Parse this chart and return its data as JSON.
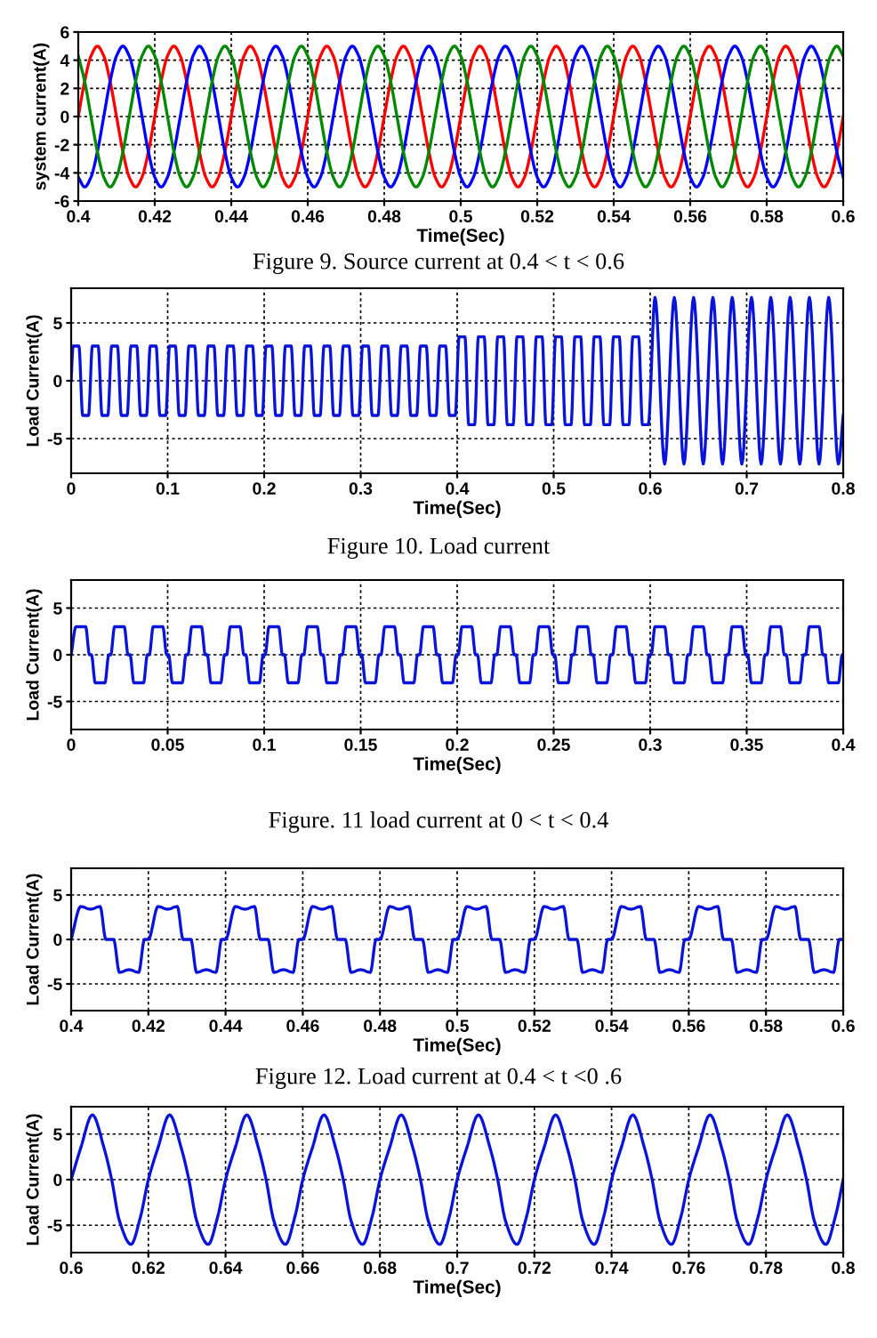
{
  "chart_data": [
    {
      "type": "line",
      "xlabel": "Time(Sec)",
      "ylabel": "system current(A)",
      "xlim": [
        0.4,
        0.6
      ],
      "ylim": [
        -6,
        6
      ],
      "xticks": [
        0.4,
        0.42,
        0.44,
        0.46,
        0.48,
        0.5,
        0.52,
        0.54,
        0.56,
        0.58,
        0.6
      ],
      "yticks": [
        -6,
        -4,
        -2,
        0,
        2,
        4,
        6
      ],
      "grid": true,
      "annotations": [
        "Figure 9. Source current at 0.4 < t < 0.6"
      ],
      "x": [
        0.4,
        0.40167,
        0.40333,
        0.405,
        0.40667,
        0.40833,
        0.41,
        0.41167,
        0.41333,
        0.415,
        0.41667,
        0.41833,
        0.42,
        0.42167,
        0.42333,
        0.425,
        0.42667,
        0.42833,
        0.43,
        0.43167,
        0.43333,
        0.435,
        0.43667,
        0.43833,
        0.44,
        0.44167,
        0.44333,
        0.445,
        0.44667,
        0.44833,
        0.45,
        0.45167,
        0.45333,
        0.455,
        0.45667,
        0.45833,
        0.46,
        0.46167,
        0.46333,
        0.465,
        0.46667,
        0.46833,
        0.47,
        0.47167,
        0.47333,
        0.475,
        0.47667,
        0.47833,
        0.48,
        0.48167,
        0.48333,
        0.485,
        0.48667,
        0.48833,
        0.49,
        0.49167,
        0.49333,
        0.495,
        0.49667,
        0.49833,
        0.5,
        0.50167,
        0.50333,
        0.505,
        0.50667,
        0.50833,
        0.51,
        0.51167,
        0.51333,
        0.515,
        0.51667,
        0.51833,
        0.52,
        0.52167,
        0.52333,
        0.525,
        0.52667,
        0.52833,
        0.53,
        0.53167,
        0.53333,
        0.535,
        0.53667,
        0.53833,
        0.54,
        0.54167,
        0.54333,
        0.545,
        0.54667,
        0.54833,
        0.55,
        0.55167,
        0.55333,
        0.555,
        0.55667,
        0.55833,
        0.56,
        0.56167,
        0.56333,
        0.565,
        0.56667,
        0.56833,
        0.57,
        0.57167,
        0.57333,
        0.575,
        0.57667,
        0.57833,
        0.58,
        0.58167,
        0.58333,
        0.585,
        0.58667,
        0.58833,
        0.59,
        0.59167,
        0.59333,
        0.595,
        0.59667,
        0.59833,
        0.6
      ],
      "series": [
        {
          "color": "#ff0000",
          "values": [
            0,
            2.5,
            4.3,
            5,
            4.3,
            2.5,
            0,
            -2.5,
            -4.3,
            -5,
            -4.3,
            -2.5,
            0,
            2.5,
            4.3,
            5,
            4.3,
            2.5,
            0,
            -2.5,
            -4.3,
            -5,
            -4.3,
            -2.5,
            0,
            2.5,
            4.3,
            5,
            4.3,
            2.5,
            0,
            -2.5,
            -4.3,
            -5,
            -4.3,
            -2.5,
            0,
            2.5,
            4.3,
            5,
            4.3,
            2.5,
            0,
            -2.5,
            -4.3,
            -5,
            -4.3,
            -2.5,
            0,
            2.5,
            4.3,
            5,
            4.3,
            2.5,
            0,
            -2.5,
            -4.3,
            -5,
            -4.3,
            -2.5,
            0,
            2.5,
            4.3,
            5,
            4.3,
            2.5,
            0,
            -2.5,
            -4.3,
            -5,
            -4.3,
            -2.5,
            0,
            2.5,
            4.3,
            5,
            4.3,
            2.5,
            0,
            -2.5,
            -4.3,
            -5,
            -4.3,
            -2.5,
            0,
            2.5,
            4.3,
            5,
            4.3,
            2.5,
            0,
            -2.5,
            -4.3,
            -5,
            -4.3,
            -2.5,
            0,
            2.5,
            4.3,
            5,
            4.3,
            2.5,
            0,
            -2.5,
            -4.3,
            -5,
            -4.3,
            -2.5,
            0,
            2.5,
            4.3,
            5,
            4.3,
            2.5,
            0,
            -2.5,
            -4.3,
            -5,
            -4.3,
            -2.5,
            0
          ]
        },
        {
          "color": "#0000ff",
          "values": [
            -4.3,
            -5,
            -4.3,
            -2.5,
            0,
            2.5,
            4.3,
            5,
            4.3,
            2.5,
            0,
            -2.5,
            -4.3,
            -5,
            -4.3,
            -2.5,
            0,
            2.5,
            4.3,
            5,
            4.3,
            2.5,
            0,
            -2.5,
            -4.3,
            -5,
            -4.3,
            -2.5,
            0,
            2.5,
            4.3,
            5,
            4.3,
            2.5,
            0,
            -2.5,
            -4.3,
            -5,
            -4.3,
            -2.5,
            0,
            2.5,
            4.3,
            5,
            4.3,
            2.5,
            0,
            -2.5,
            -4.3,
            -5,
            -4.3,
            -2.5,
            0,
            2.5,
            4.3,
            5,
            4.3,
            2.5,
            0,
            -2.5,
            -4.3,
            -5,
            -4.3,
            -2.5,
            0,
            2.5,
            4.3,
            5,
            4.3,
            2.5,
            0,
            -2.5,
            -4.3,
            -5,
            -4.3,
            -2.5,
            0,
            2.5,
            4.3,
            5,
            4.3,
            2.5,
            0,
            -2.5,
            -4.3,
            -5,
            -4.3,
            -2.5,
            0,
            2.5,
            4.3,
            5,
            4.3,
            2.5,
            0,
            -2.5,
            -4.3,
            -5,
            -4.3,
            -2.5,
            0,
            2.5,
            4.3,
            5,
            4.3,
            2.5,
            0,
            -2.5,
            -4.3,
            -5,
            -4.3,
            -2.5,
            0,
            2.5,
            4.3,
            5,
            4.3,
            2.5,
            0,
            -2.5,
            -4.3
          ]
        },
        {
          "color": "#008800",
          "values": [
            4.3,
            2.5,
            0,
            -2.5,
            -4.3,
            -5,
            -4.3,
            -2.5,
            0,
            2.5,
            4.3,
            5,
            4.3,
            2.5,
            0,
            -2.5,
            -4.3,
            -5,
            -4.3,
            -2.5,
            0,
            2.5,
            4.3,
            5,
            4.3,
            2.5,
            0,
            -2.5,
            -4.3,
            -5,
            -4.3,
            -2.5,
            0,
            2.5,
            4.3,
            5,
            4.3,
            2.5,
            0,
            -2.5,
            -4.3,
            -5,
            -4.3,
            -2.5,
            0,
            2.5,
            4.3,
            5,
            4.3,
            2.5,
            0,
            -2.5,
            -4.3,
            -5,
            -4.3,
            -2.5,
            0,
            2.5,
            4.3,
            5,
            4.3,
            2.5,
            0,
            -2.5,
            -4.3,
            -5,
            -4.3,
            -2.5,
            0,
            2.5,
            4.3,
            5,
            4.3,
            2.5,
            0,
            -2.5,
            -4.3,
            -5,
            -4.3,
            -2.5,
            0,
            2.5,
            4.3,
            5,
            4.3,
            2.5,
            0,
            -2.5,
            -4.3,
            -5,
            -4.3,
            -2.5,
            0,
            2.5,
            4.3,
            5,
            4.3,
            2.5,
            0,
            -2.5,
            -4.3,
            -5,
            -4.3,
            -2.5,
            0,
            2.5,
            4.3,
            5,
            4.3,
            2.5,
            0,
            -2.5,
            -4.3,
            -5,
            -4.3,
            -2.5,
            0,
            2.5,
            4.3,
            5,
            4.3
          ]
        }
      ]
    },
    {
      "type": "line",
      "xlabel": "Time(Sec)",
      "ylabel": "Load Current(A)",
      "xlim": [
        0,
        0.8
      ],
      "ylim": [
        -8,
        8
      ],
      "xticks": [
        0,
        0.1,
        0.2,
        0.3,
        0.4,
        0.5,
        0.6,
        0.7,
        0.8
      ],
      "yticks": [
        -5,
        0,
        5
      ],
      "grid": true,
      "annotations": [
        "Figure 10. Load current"
      ],
      "x": [
        0,
        0.002,
        0.008,
        0.012,
        0.018,
        0.022,
        0.028,
        0.032,
        0.038,
        0.042,
        0.048,
        0.052,
        0.058,
        0.062,
        0.068,
        0.072,
        0.078,
        0.082,
        0.088,
        0.092,
        0.098,
        0.102,
        0.108,
        0.112,
        0.118,
        0.122,
        0.128,
        0.132,
        0.138,
        0.142,
        0.148,
        0.152,
        0.158,
        0.162,
        0.168,
        0.172,
        0.178,
        0.182,
        0.188,
        0.192,
        0.198,
        0.202,
        0.208,
        0.212,
        0.218,
        0.222,
        0.228,
        0.232,
        0.238,
        0.242,
        0.248,
        0.252,
        0.258,
        0.262,
        0.268,
        0.272,
        0.278,
        0.282,
        0.288,
        0.292,
        0.298,
        0.302,
        0.308,
        0.312,
        0.318,
        0.322,
        0.328,
        0.332,
        0.338,
        0.342,
        0.348,
        0.352,
        0.358,
        0.362,
        0.368,
        0.372,
        0.378,
        0.382,
        0.388,
        0.392,
        0.398,
        0.402,
        0.408,
        0.412,
        0.418,
        0.422,
        0.428,
        0.432,
        0.438,
        0.442,
        0.448,
        0.452,
        0.458,
        0.462,
        0.468,
        0.472,
        0.478,
        0.482,
        0.488,
        0.492,
        0.498,
        0.502,
        0.508,
        0.512,
        0.518,
        0.522,
        0.528,
        0.532,
        0.538,
        0.542,
        0.548,
        0.552,
        0.558,
        0.562,
        0.568,
        0.572,
        0.578,
        0.582,
        0.588,
        0.592,
        0.598,
        0.605,
        0.615,
        0.625,
        0.635,
        0.645,
        0.655,
        0.665,
        0.675,
        0.685,
        0.695,
        0.705,
        0.715,
        0.725,
        0.735,
        0.745,
        0.755,
        0.765,
        0.775,
        0.785,
        0.795,
        0.8
      ],
      "series": [
        {
          "color": "#0a14d8",
          "values": [
            0,
            3,
            3,
            -3,
            -3,
            3,
            3,
            -3,
            -3,
            3,
            3,
            -3,
            -3,
            3,
            3,
            -3,
            -3,
            3,
            3,
            -3,
            -3,
            3,
            3,
            -3,
            -3,
            3,
            3,
            -3,
            -3,
            3,
            3,
            -3,
            -3,
            3,
            3,
            -3,
            -3,
            3,
            3,
            -3,
            -3,
            3,
            3,
            -3,
            -3,
            3,
            3,
            -3,
            -3,
            3,
            3,
            -3,
            -3,
            3,
            3,
            -3,
            -3,
            3,
            3,
            -3,
            -3,
            3,
            3,
            -3,
            -3,
            3,
            3,
            -3,
            -3,
            3,
            3,
            -3,
            -3,
            3,
            3,
            -3,
            -3,
            3,
            3,
            -3,
            -3,
            3.8,
            3.8,
            -3.8,
            -3.8,
            3.8,
            3.8,
            -3.8,
            -3.8,
            3.8,
            3.8,
            -3.8,
            -3.8,
            3.8,
            3.8,
            -3.8,
            -3.8,
            3.8,
            3.8,
            -3.8,
            -3.8,
            3.8,
            3.8,
            -3.8,
            -3.8,
            3.8,
            3.8,
            -3.8,
            -3.8,
            3.8,
            3.8,
            -3.8,
            -3.8,
            3.8,
            3.8,
            -3.8,
            -3.8,
            3.8,
            3.8,
            -3.8,
            -3.8,
            7.2,
            -7.2,
            7.2,
            -7.2,
            7.2,
            -7.2,
            7.2,
            -7.2,
            7.2,
            -7.2,
            7.2,
            -7.2,
            7.2,
            -7.2,
            7.2,
            -7.2,
            7.2,
            -7.2,
            7.2,
            -7.2,
            -3
          ]
        }
      ]
    },
    {
      "type": "line",
      "xlabel": "Time(Sec)",
      "ylabel": "Load Current(A)",
      "xlim": [
        0,
        0.4
      ],
      "ylim": [
        -8,
        8
      ],
      "xticks": [
        0,
        0.05,
        0.1,
        0.15,
        0.2,
        0.25,
        0.3,
        0.35,
        0.4
      ],
      "yticks": [
        -5,
        0,
        5
      ],
      "grid": true,
      "annotations": [
        "Figure. 11 load current at 0 < t < 0.4"
      ],
      "x": [
        0,
        0.0025,
        0.0075,
        0.0095,
        0.0105,
        0.0125,
        0.0175,
        0.0195,
        0.0205,
        0.0225,
        0.0275,
        0.0295,
        0.0305,
        0.0325,
        0.0375,
        0.0395,
        0.0405,
        0.0425,
        0.0475,
        0.0495,
        0.0505,
        0.0525,
        0.0575,
        0.0595,
        0.0605,
        0.0625,
        0.0675,
        0.0695,
        0.0705,
        0.0725,
        0.0775,
        0.0795,
        0.0805,
        0.0825,
        0.0875,
        0.0895,
        0.0905,
        0.0925,
        0.0975,
        0.0995,
        0.1005,
        0.1025,
        0.1075,
        0.1095,
        0.1105,
        0.1125,
        0.1175,
        0.1195,
        0.1205,
        0.1225,
        0.1275,
        0.1295,
        0.1305,
        0.1325,
        0.1375,
        0.1395,
        0.1405,
        0.1425,
        0.1475,
        0.1495,
        0.1505,
        0.1525,
        0.1575,
        0.1595,
        0.1605,
        0.1625,
        0.1675,
        0.1695,
        0.1705,
        0.1725,
        0.1775,
        0.1795,
        0.1805,
        0.1825,
        0.1875,
        0.1895,
        0.1905,
        0.1925,
        0.1975,
        0.1995,
        0.2005,
        0.2025,
        0.2075,
        0.2095,
        0.2105,
        0.2125,
        0.2175,
        0.2195,
        0.2205,
        0.2225,
        0.2275,
        0.2295,
        0.2305,
        0.2325,
        0.2375,
        0.2395,
        0.2405,
        0.2425,
        0.2475,
        0.2495,
        0.2505,
        0.2525,
        0.2575,
        0.2595,
        0.2605,
        0.2625,
        0.2675,
        0.2695,
        0.2705,
        0.2725,
        0.2775,
        0.2795,
        0.2805,
        0.2825,
        0.2875,
        0.2895,
        0.2905,
        0.2925,
        0.2975,
        0.2995,
        0.3005,
        0.3025,
        0.3075,
        0.3095,
        0.3105,
        0.3125,
        0.3175,
        0.3195,
        0.3205,
        0.3225,
        0.3275,
        0.3295,
        0.3305,
        0.3325,
        0.3375,
        0.3395,
        0.3405,
        0.3425,
        0.3475,
        0.3495,
        0.3505,
        0.3525,
        0.3575,
        0.3595,
        0.3605,
        0.3625,
        0.3675,
        0.3695,
        0.3705,
        0.3725,
        0.3775,
        0.3795,
        0.3805,
        0.3825,
        0.3875,
        0.3895,
        0.3905,
        0.3925,
        0.3975,
        0.3995,
        0.4
      ],
      "series": [
        {
          "color": "#0a14d8",
          "values": [
            0,
            3,
            3,
            0,
            0,
            -3,
            -3,
            0,
            0,
            3,
            3,
            0,
            0,
            -3,
            -3,
            0,
            0,
            3,
            3,
            0,
            0,
            -3,
            -3,
            0,
            0,
            3,
            3,
            0,
            0,
            -3,
            -3,
            0,
            0,
            3,
            3,
            0,
            0,
            -3,
            -3,
            0,
            0,
            3,
            3,
            0,
            0,
            -3,
            -3,
            0,
            0,
            3,
            3,
            0,
            0,
            -3,
            -3,
            0,
            0,
            3,
            3,
            0,
            0,
            -3,
            -3,
            0,
            0,
            3,
            3,
            0,
            0,
            -3,
            -3,
            0,
            0,
            3,
            3,
            0,
            0,
            -3,
            -3,
            0,
            0,
            3,
            3,
            0,
            0,
            -3,
            -3,
            0,
            0,
            3,
            3,
            0,
            0,
            -3,
            -3,
            0,
            0,
            3,
            3,
            0,
            0,
            -3,
            -3,
            0,
            0,
            3,
            3,
            0,
            0,
            -3,
            -3,
            0,
            0,
            3,
            3,
            0,
            0,
            -3,
            -3,
            0,
            0,
            3,
            3,
            0,
            0,
            -3,
            -3,
            0,
            0,
            3,
            3,
            0,
            0,
            -3,
            -3,
            0,
            0,
            3,
            3,
            0,
            0,
            -3,
            -3,
            0,
            0,
            3,
            3,
            0,
            0,
            -3,
            -3,
            0,
            0,
            3,
            3,
            0,
            0,
            -3,
            -3,
            0,
            0
          ]
        }
      ]
    },
    {
      "type": "line",
      "xlabel": "Time(Sec)",
      "ylabel": "Load Current(A)",
      "xlim": [
        0.4,
        0.6
      ],
      "ylim": [
        -8,
        8
      ],
      "xticks": [
        0.4,
        0.42,
        0.44,
        0.46,
        0.48,
        0.5,
        0.52,
        0.54,
        0.56,
        0.58,
        0.6
      ],
      "yticks": [
        -5,
        0,
        5
      ],
      "grid": true,
      "annotations": [
        "Figure 12. Load current at 0.4 < t <0 .6"
      ],
      "x": [
        0.4,
        0.4025,
        0.405,
        0.4075,
        0.409,
        0.411,
        0.4125,
        0.415,
        0.4175,
        0.419,
        0.42,
        0.4225,
        0.425,
        0.4275,
        0.429,
        0.431,
        0.4325,
        0.435,
        0.4375,
        0.439,
        0.44,
        0.4425,
        0.445,
        0.4475,
        0.449,
        0.451,
        0.4525,
        0.455,
        0.4575,
        0.459,
        0.46,
        0.4625,
        0.465,
        0.4675,
        0.469,
        0.471,
        0.4725,
        0.475,
        0.4775,
        0.479,
        0.48,
        0.4825,
        0.485,
        0.4875,
        0.489,
        0.491,
        0.4925,
        0.495,
        0.4975,
        0.499,
        0.5,
        0.5025,
        0.505,
        0.5075,
        0.509,
        0.511,
        0.5125,
        0.515,
        0.5175,
        0.519,
        0.52,
        0.5225,
        0.525,
        0.5275,
        0.529,
        0.531,
        0.5325,
        0.535,
        0.5375,
        0.539,
        0.54,
        0.5425,
        0.545,
        0.5475,
        0.549,
        0.551,
        0.5525,
        0.555,
        0.5575,
        0.559,
        0.56,
        0.5625,
        0.565,
        0.5675,
        0.569,
        0.571,
        0.5725,
        0.575,
        0.5775,
        0.579,
        0.58,
        0.5825,
        0.585,
        0.5875,
        0.589,
        0.591,
        0.5925,
        0.595,
        0.5975,
        0.599,
        0.6
      ],
      "series": [
        {
          "color": "#0a14d8",
          "values": [
            0,
            3.7,
            3.4,
            3.7,
            0,
            0,
            -3.7,
            -3.4,
            -3.7,
            0,
            0,
            3.7,
            3.4,
            3.7,
            0,
            0,
            -3.7,
            -3.4,
            -3.7,
            0,
            0,
            3.7,
            3.4,
            3.7,
            0,
            0,
            -3.7,
            -3.4,
            -3.7,
            0,
            0,
            3.7,
            3.4,
            3.7,
            0,
            0,
            -3.7,
            -3.4,
            -3.7,
            0,
            0,
            3.7,
            3.4,
            3.7,
            0,
            0,
            -3.7,
            -3.4,
            -3.7,
            0,
            0,
            3.7,
            3.4,
            3.7,
            0,
            0,
            -3.7,
            -3.4,
            -3.7,
            0,
            0,
            3.7,
            3.4,
            3.7,
            0,
            0,
            -3.7,
            -3.4,
            -3.7,
            0,
            0,
            3.7,
            3.4,
            3.7,
            0,
            0,
            -3.7,
            -3.4,
            -3.7,
            0,
            0,
            3.7,
            3.4,
            3.7,
            0,
            0,
            -3.7,
            -3.4,
            -3.7,
            0,
            0,
            3.7,
            3.4,
            3.7,
            0,
            0,
            -3.7,
            -3.4,
            -3.7,
            0,
            0
          ]
        }
      ]
    },
    {
      "type": "line",
      "xlabel": "Time(Sec)",
      "ylabel": "Load Current(A)",
      "xlim": [
        0.6,
        0.8
      ],
      "ylim": [
        -8,
        8
      ],
      "xticks": [
        0.6,
        0.62,
        0.64,
        0.66,
        0.68,
        0.7,
        0.72,
        0.74,
        0.76,
        0.78,
        0.8
      ],
      "yticks": [
        -5,
        0,
        5
      ],
      "grid": true,
      "x": [
        0.6,
        0.6025,
        0.6055,
        0.6085,
        0.6105,
        0.6125,
        0.6155,
        0.618,
        0.62,
        0.6225,
        0.6255,
        0.6285,
        0.6305,
        0.6325,
        0.6355,
        0.638,
        0.64,
        0.6425,
        0.6455,
        0.6485,
        0.6505,
        0.6525,
        0.6555,
        0.658,
        0.66,
        0.6625,
        0.6655,
        0.6685,
        0.6705,
        0.6725,
        0.6755,
        0.678,
        0.68,
        0.6825,
        0.6855,
        0.6885,
        0.6905,
        0.6925,
        0.6955,
        0.698,
        0.7,
        0.7025,
        0.7055,
        0.7085,
        0.7105,
        0.7125,
        0.7155,
        0.718,
        0.72,
        0.7225,
        0.7255,
        0.7285,
        0.7305,
        0.7325,
        0.7355,
        0.738,
        0.74,
        0.7425,
        0.7455,
        0.7485,
        0.7505,
        0.7525,
        0.7555,
        0.758,
        0.76,
        0.7625,
        0.7655,
        0.7685,
        0.7705,
        0.7725,
        0.7755,
        0.778,
        0.78,
        0.7825,
        0.7855,
        0.7885,
        0.7905,
        0.7925,
        0.7955,
        0.798,
        0.8
      ],
      "series": [
        {
          "color": "#0a14d8",
          "values": [
            0,
            3.5,
            7.1,
            3.5,
            0,
            -4.5,
            -7.1,
            -4,
            0,
            3.5,
            7.1,
            3.5,
            0,
            -4.5,
            -7.1,
            -4,
            0,
            3.5,
            7.1,
            3.5,
            0,
            -4.5,
            -7.1,
            -4,
            0,
            3.5,
            7.1,
            3.5,
            0,
            -4.5,
            -7.1,
            -4,
            0,
            3.5,
            7.1,
            3.5,
            0,
            -4.5,
            -7.1,
            -4,
            0,
            3.5,
            7.1,
            3.5,
            0,
            -4.5,
            -7.1,
            -4,
            0,
            3.5,
            7.1,
            3.5,
            0,
            -4.5,
            -7.1,
            -4,
            0,
            3.5,
            7.1,
            3.5,
            0,
            -4.5,
            -7.1,
            -4,
            0,
            3.5,
            7.1,
            3.5,
            0,
            -4.5,
            -7.1,
            -4,
            0,
            3.5,
            7.1,
            3.5,
            0,
            -4.5,
            -7.1,
            -4,
            0
          ]
        }
      ]
    }
  ]
}
